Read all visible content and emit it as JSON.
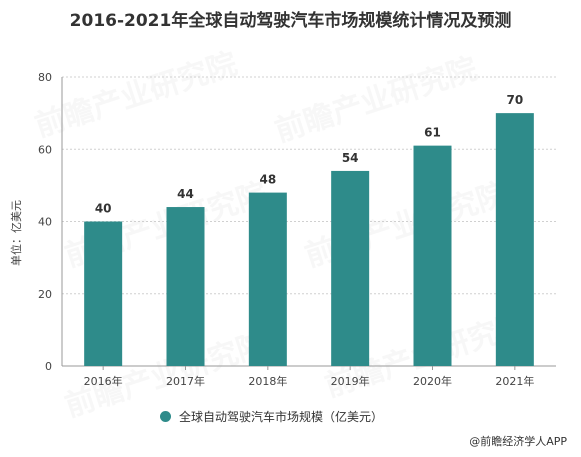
{
  "title": "2016-2021年全球自动驾驶汽车市场规模统计情况及预测",
  "credit": "@前瞻经济学人APP",
  "watermark_text": "前瞻产业研究院",
  "colors": {
    "bar": "#2e8b8a",
    "grid": "#d0d0d0",
    "axis": "#999999",
    "text": "#333333"
  },
  "chart_data": {
    "type": "bar",
    "title": "2016-2021年全球自动驾驶汽车市场规模统计情况及预测",
    "categories": [
      "2016年",
      "2017年",
      "2018年",
      "2019年",
      "2020年",
      "2021年"
    ],
    "series": [
      {
        "name": "全球自动驾驶汽车市场规模（亿美元）",
        "values": [
          40,
          44,
          48,
          54,
          61,
          70
        ]
      }
    ],
    "ylabel": "单位：亿美元",
    "xlabel": "",
    "ylim": [
      0,
      80
    ],
    "yticks": [
      0,
      20,
      40,
      60,
      80
    ],
    "grid": true,
    "legend": "bottom"
  }
}
